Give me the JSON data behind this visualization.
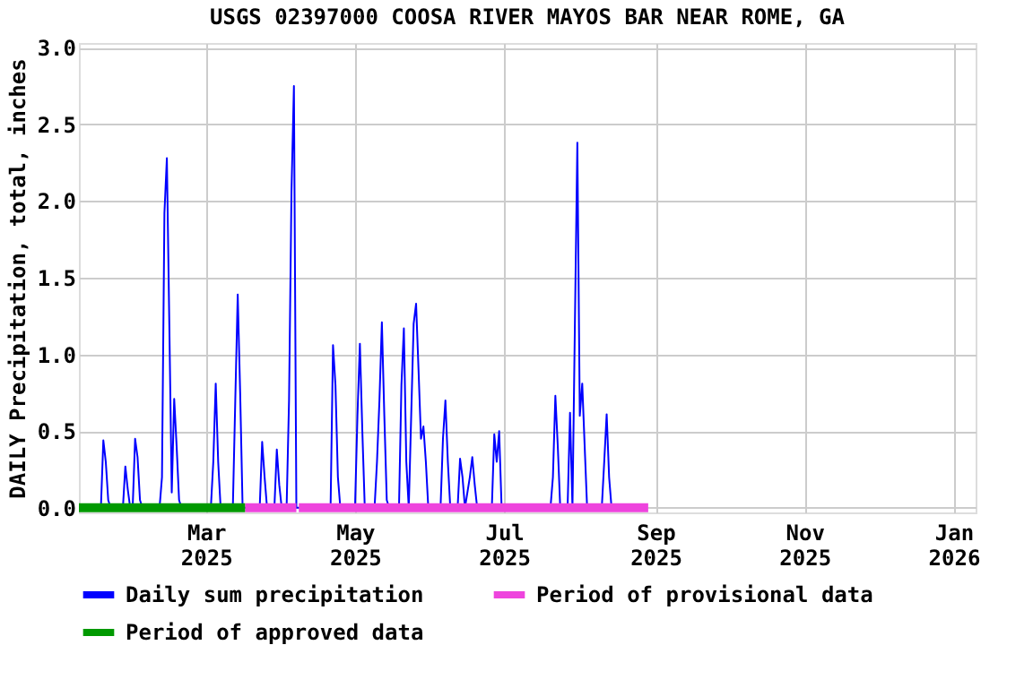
{
  "chart_data": {
    "type": "line",
    "title": "USGS 02397000 COOSA RIVER MAYOS BAR NEAR ROME, GA",
    "ylabel": "DAILY Precipitation, total, inches",
    "xlim": [
      "2025-01-08",
      "2026-01-10"
    ],
    "xticks": [
      {
        "value": "2025-03-01",
        "label": "Mar 2025"
      },
      {
        "value": "2025-05-01",
        "label": "May 2025"
      },
      {
        "value": "2025-07-01",
        "label": "Jul 2025"
      },
      {
        "value": "2025-09-01",
        "label": "Sep 2025"
      },
      {
        "value": "2025-11-01",
        "label": "Nov 2025"
      },
      {
        "value": "2026-01-01",
        "label": "Jan 2026"
      }
    ],
    "ylim": [
      -0.03,
      3.03
    ],
    "yticks": [
      {
        "value": 0,
        "label": "0.0"
      },
      {
        "value": 0.5,
        "label": "0.5"
      },
      {
        "value": 1,
        "label": "1.0"
      },
      {
        "value": 1.5,
        "label": "1.5"
      },
      {
        "value": 2,
        "label": "2.0"
      },
      {
        "value": 2.5,
        "label": "2.5"
      },
      {
        "value": 3,
        "label": "3.0"
      }
    ],
    "grid": true,
    "legend": "bottom",
    "marker": "none",
    "line_style": "solid",
    "series": [
      {
        "name": "Daily sum precipitation",
        "color": "#0000ff",
        "x": [
          "2025-01-08",
          "2025-01-17",
          "2025-01-18",
          "2025-01-19",
          "2025-01-20",
          "2025-01-21",
          "2025-01-26",
          "2025-01-27",
          "2025-01-28",
          "2025-01-29",
          "2025-01-30",
          "2025-01-31",
          "2025-02-01",
          "2025-02-02",
          "2025-02-03",
          "2025-02-10",
          "2025-02-11",
          "2025-02-12",
          "2025-02-13",
          "2025-02-14",
          "2025-02-15",
          "2025-02-16",
          "2025-02-17",
          "2025-02-18",
          "2025-02-19",
          "2025-03-03",
          "2025-03-04",
          "2025-03-05",
          "2025-03-06",
          "2025-03-07",
          "2025-03-12",
          "2025-03-13",
          "2025-03-14",
          "2025-03-15",
          "2025-03-16",
          "2025-03-23",
          "2025-03-24",
          "2025-03-25",
          "2025-03-26",
          "2025-03-29",
          "2025-03-30",
          "2025-03-31",
          "2025-04-01",
          "2025-04-03",
          "2025-04-04",
          "2025-04-05",
          "2025-04-06",
          "2025-04-07",
          "2025-04-21",
          "2025-04-22",
          "2025-04-23",
          "2025-04-24",
          "2025-04-25",
          "2025-05-01",
          "2025-05-02",
          "2025-05-03",
          "2025-05-04",
          "2025-05-05",
          "2025-05-09",
          "2025-05-10",
          "2025-05-11",
          "2025-05-12",
          "2025-05-13",
          "2025-05-14",
          "2025-05-15",
          "2025-05-19",
          "2025-05-20",
          "2025-05-21",
          "2025-05-22",
          "2025-05-23",
          "2025-05-25",
          "2025-05-26",
          "2025-05-27",
          "2025-05-28",
          "2025-05-29",
          "2025-05-30",
          "2025-05-31",
          "2025-06-05",
          "2025-06-06",
          "2025-06-07",
          "2025-06-08",
          "2025-06-09",
          "2025-06-12",
          "2025-06-13",
          "2025-06-14",
          "2025-06-15",
          "2025-06-17",
          "2025-06-18",
          "2025-06-19",
          "2025-06-20",
          "2025-06-26",
          "2025-06-27",
          "2025-06-28",
          "2025-06-29",
          "2025-06-30",
          "2025-07-20",
          "2025-07-21",
          "2025-07-22",
          "2025-07-23",
          "2025-07-24",
          "2025-07-27",
          "2025-07-28",
          "2025-07-29",
          "2025-07-30",
          "2025-07-31",
          "2025-08-01",
          "2025-08-02",
          "2025-08-03",
          "2025-08-04",
          "2025-08-10",
          "2025-08-11",
          "2025-08-12",
          "2025-08-13",
          "2025-08-14"
        ],
        "values": [
          0,
          0,
          0.44,
          0.3,
          0.05,
          0,
          0,
          0.27,
          0.12,
          0,
          0,
          0.45,
          0.33,
          0.05,
          0,
          0,
          0.2,
          1.92,
          2.28,
          1.2,
          0.1,
          0.71,
          0.4,
          0.05,
          0,
          0,
          0.3,
          0.81,
          0.3,
          0,
          0,
          0.7,
          1.39,
          0.75,
          0,
          0,
          0.43,
          0.2,
          0,
          0,
          0.38,
          0.15,
          0,
          0,
          0.7,
          2.06,
          2.75,
          0,
          0,
          1.06,
          0.8,
          0.2,
          0,
          0,
          0.6,
          1.07,
          0.5,
          0,
          0,
          0.3,
          0.7,
          1.21,
          0.6,
          0.05,
          0,
          0,
          0.8,
          1.17,
          0.3,
          0,
          1.2,
          1.33,
          0.9,
          0.45,
          0.53,
          0.3,
          0,
          0,
          0.45,
          0.7,
          0.3,
          0,
          0,
          0.32,
          0.2,
          0,
          0.2,
          0.33,
          0.15,
          0,
          0,
          0.48,
          0.3,
          0.5,
          0,
          0,
          0.2,
          0.73,
          0.4,
          0,
          0,
          0.62,
          0,
          1.2,
          2.38,
          0.6,
          0.81,
          0.4,
          0,
          0,
          0.3,
          0.61,
          0.2,
          0
        ]
      },
      {
        "name": "Period of provisional data",
        "color": "#ee44dd",
        "x": [
          "2025-03-17",
          "2025-04-07",
          "2025-04-07T12:00",
          "2025-04-08",
          "2025-08-29"
        ],
        "values": [
          0,
          0,
          null,
          0,
          0
        ]
      },
      {
        "name": "Period of approved data",
        "color": "#009900",
        "x": [
          "2025-01-08",
          "2025-03-17"
        ],
        "values": [
          0,
          0
        ]
      }
    ]
  }
}
